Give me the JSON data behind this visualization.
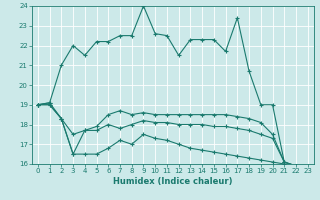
{
  "background_color": "#cce9e9",
  "grid_color": "#ffffff",
  "line_color": "#1a7a6e",
  "xlabel": "Humidex (Indice chaleur)",
  "xlim": [
    -0.5,
    23.5
  ],
  "ylim": [
    16,
    24
  ],
  "yticks": [
    16,
    17,
    18,
    19,
    20,
    21,
    22,
    23,
    24
  ],
  "xticks": [
    0,
    1,
    2,
    3,
    4,
    5,
    6,
    7,
    8,
    9,
    10,
    11,
    12,
    13,
    14,
    15,
    16,
    17,
    18,
    19,
    20,
    21,
    22,
    23
  ],
  "top_y": [
    19.0,
    19.1,
    21.0,
    22.0,
    21.5,
    22.2,
    22.2,
    22.5,
    22.5,
    24.0,
    22.6,
    22.5,
    21.5,
    22.3,
    22.3,
    22.3,
    21.7,
    23.4,
    20.7,
    19.0,
    19.0,
    16.1,
    15.9,
    15.8
  ],
  "um_y": [
    19.0,
    19.1,
    18.3,
    17.5,
    17.7,
    17.9,
    18.5,
    18.7,
    18.5,
    18.6,
    18.5,
    18.5,
    18.5,
    18.5,
    18.5,
    18.5,
    18.5,
    18.4,
    18.3,
    18.1,
    17.5,
    16.1,
    15.9,
    15.8
  ],
  "lm_y": [
    19.0,
    19.0,
    18.3,
    16.5,
    17.7,
    17.7,
    18.0,
    17.8,
    18.0,
    18.2,
    18.1,
    18.1,
    18.0,
    18.0,
    18.0,
    17.9,
    17.9,
    17.8,
    17.7,
    17.5,
    17.3,
    16.1,
    15.9,
    15.8
  ],
  "bot_y": [
    19.0,
    19.0,
    18.3,
    16.5,
    16.5,
    16.5,
    16.8,
    17.2,
    17.0,
    17.5,
    17.3,
    17.2,
    17.0,
    16.8,
    16.7,
    16.6,
    16.5,
    16.4,
    16.3,
    16.2,
    16.1,
    16.0,
    15.9,
    15.8
  ],
  "xlabel_fontsize": 6.0,
  "tick_fontsize": 5.0,
  "linewidth": 0.8,
  "markersize": 2.5
}
